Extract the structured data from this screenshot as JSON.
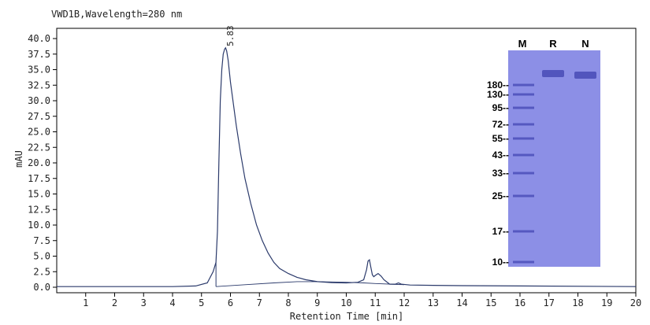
{
  "chart_data": {
    "type": "line",
    "title": "VWD1B,Wavelength=280 nm",
    "xlabel": "Retention Time [min]",
    "ylabel": "mAU",
    "xlim": [
      0,
      20
    ],
    "ylim": [
      0,
      40
    ],
    "x_ticks": [
      "1",
      "2",
      "3",
      "4",
      "5",
      "6",
      "7",
      "8",
      "9",
      "10",
      "11",
      "12",
      "13",
      "14",
      "15",
      "16",
      "17",
      "18",
      "19",
      "20"
    ],
    "y_ticks": [
      "0.0",
      "2.5",
      "5.0",
      "7.5",
      "10.0",
      "12.5",
      "15.0",
      "17.5",
      "20.0",
      "22.5",
      "25.0",
      "27.5",
      "30.0",
      "32.5",
      "35.0",
      "37.5",
      "40.0"
    ],
    "peak_label": "5.83",
    "series": [
      {
        "x": [
          0.0,
          4.0,
          4.8,
          5.2,
          5.4,
          5.5,
          5.55,
          5.6,
          5.65,
          5.7,
          5.75,
          5.8,
          5.83,
          5.87,
          5.92,
          6.0,
          6.1,
          6.2,
          6.35,
          6.5,
          6.7,
          6.9,
          7.1,
          7.3,
          7.5,
          7.7,
          8.0,
          8.3,
          8.6,
          9.0,
          9.5,
          10.0,
          10.4,
          10.6,
          10.7,
          10.75,
          10.8,
          10.85,
          10.9,
          10.95,
          11.0,
          11.1,
          11.2,
          11.3,
          11.5,
          11.7,
          11.8,
          11.9,
          12.2,
          13.0,
          14.0,
          16.0,
          20.0
        ],
        "y": [
          0.1,
          0.1,
          0.2,
          0.7,
          2.5,
          4.0,
          9.0,
          20.0,
          30.0,
          35.0,
          37.5,
          38.3,
          38.5,
          38.0,
          36.5,
          33.0,
          29.5,
          26.0,
          21.5,
          17.5,
          13.5,
          10.0,
          7.5,
          5.5,
          4.0,
          3.0,
          2.2,
          1.6,
          1.2,
          0.9,
          0.75,
          0.7,
          0.8,
          1.2,
          2.8,
          4.2,
          4.4,
          3.2,
          2.0,
          1.7,
          1.9,
          2.2,
          1.8,
          1.2,
          0.5,
          0.5,
          0.7,
          0.5,
          0.35,
          0.3,
          0.25,
          0.2,
          0.1
        ]
      },
      {
        "x": [
          5.5,
          6.5,
          7.5,
          8.3,
          9.0,
          10.0,
          10.6,
          11.0,
          12.0
        ],
        "y": [
          0.1,
          0.4,
          0.7,
          0.9,
          0.9,
          0.8,
          0.7,
          0.6,
          0.4
        ]
      }
    ],
    "inset_gel": {
      "lanes": [
        "M",
        "R",
        "N"
      ],
      "marker_labels": [
        "180--",
        "130--",
        "95--",
        "72--",
        "55--",
        "43--",
        "33--",
        "25--",
        "17--",
        "10--"
      ],
      "marker_kda": [
        180,
        130,
        95,
        72,
        55,
        43,
        33,
        25,
        17,
        10
      ],
      "colors": {
        "gel": "#8c8fe6",
        "bands": "#4b4fb8"
      }
    },
    "colors": {
      "trace": "#2b3a6b",
      "axis": "#000000"
    },
    "grid": false
  }
}
